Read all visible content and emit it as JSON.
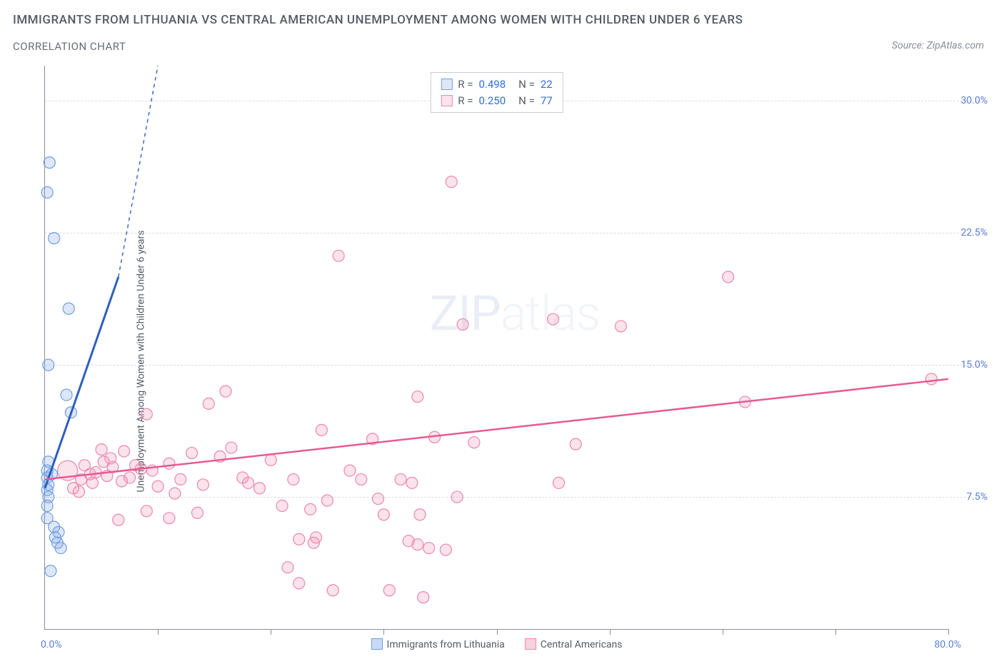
{
  "title_main": "IMMIGRANTS FROM LITHUANIA VS CENTRAL AMERICAN UNEMPLOYMENT AMONG WOMEN WITH CHILDREN UNDER 6 YEARS",
  "title_sub": "CORRELATION CHART",
  "source": "Source: ZipAtlas.com",
  "ylabel": "Unemployment Among Women with Children Under 6 years",
  "watermark_a": "ZIP",
  "watermark_b": "atlas",
  "chart": {
    "type": "scatter",
    "xlim": [
      0,
      80
    ],
    "ylim": [
      0,
      32
    ],
    "ytick_step": 7.5,
    "xtick_step": 10,
    "y_labels": [
      {
        "v": 7.5,
        "t": "7.5%"
      },
      {
        "v": 15.0,
        "t": "15.0%"
      },
      {
        "v": 22.5,
        "t": "22.5%"
      },
      {
        "v": 30.0,
        "t": "30.0%"
      }
    ],
    "x_min_label": "0.0%",
    "x_max_label": "80.0%",
    "grid_color": "#d9dbe0",
    "axis_color": "#8b8f9a",
    "background_color": "#ffffff",
    "marker_radius": 8,
    "series": [
      {
        "name": "Immigrants from Lithuania",
        "color_fill": "rgba(120,160,230,0.25)",
        "color_stroke": "#6f9fe0",
        "line_color": "#2e5fbf",
        "line_width": 3,
        "R": "0.498",
        "N": "22",
        "trend": {
          "x1": 0,
          "y1": 8.0,
          "x2": 6.5,
          "y2": 20.0,
          "dash_to_x": 10,
          "dash_to_y": 32
        },
        "points": [
          {
            "x": 0.4,
            "y": 26.5
          },
          {
            "x": 0.2,
            "y": 24.8
          },
          {
            "x": 0.8,
            "y": 22.2
          },
          {
            "x": 2.1,
            "y": 18.2
          },
          {
            "x": 0.3,
            "y": 15.0
          },
          {
            "x": 1.9,
            "y": 13.3
          },
          {
            "x": 2.3,
            "y": 12.3
          },
          {
            "x": 0.3,
            "y": 9.5
          },
          {
            "x": 0.2,
            "y": 9.0
          },
          {
            "x": 0.2,
            "y": 8.6
          },
          {
            "x": 0.3,
            "y": 8.2
          },
          {
            "x": 0.2,
            "y": 7.9
          },
          {
            "x": 0.3,
            "y": 7.5
          },
          {
            "x": 0.2,
            "y": 7.0
          },
          {
            "x": 0.2,
            "y": 6.3
          },
          {
            "x": 0.8,
            "y": 5.8
          },
          {
            "x": 1.2,
            "y": 5.5
          },
          {
            "x": 0.9,
            "y": 5.2
          },
          {
            "x": 1.1,
            "y": 4.9
          },
          {
            "x": 1.4,
            "y": 4.6
          },
          {
            "x": 0.5,
            "y": 3.3
          },
          {
            "x": 0.6,
            "y": 8.8
          }
        ]
      },
      {
        "name": "Central Americans",
        "color_fill": "rgba(240,140,175,0.25)",
        "color_stroke": "#ea87af",
        "line_color": "#e75a93",
        "line_width": 2.5,
        "R": "0.250",
        "N": "77",
        "trend": {
          "x1": 0,
          "y1": 8.5,
          "x2": 80,
          "y2": 14.2
        },
        "points": [
          {
            "x": 36,
            "y": 25.4
          },
          {
            "x": 26,
            "y": 21.2
          },
          {
            "x": 60.5,
            "y": 20.0
          },
          {
            "x": 45,
            "y": 17.6
          },
          {
            "x": 37,
            "y": 17.3
          },
          {
            "x": 51,
            "y": 17.2
          },
          {
            "x": 78.5,
            "y": 14.2
          },
          {
            "x": 16,
            "y": 13.5
          },
          {
            "x": 33,
            "y": 13.2
          },
          {
            "x": 14.5,
            "y": 12.8
          },
          {
            "x": 62,
            "y": 12.9
          },
          {
            "x": 9,
            "y": 12.2
          },
          {
            "x": 24.5,
            "y": 11.3
          },
          {
            "x": 29,
            "y": 10.8
          },
          {
            "x": 34.5,
            "y": 10.9
          },
          {
            "x": 38,
            "y": 10.6
          },
          {
            "x": 47,
            "y": 10.5
          },
          {
            "x": 5,
            "y": 10.2
          },
          {
            "x": 7,
            "y": 10.1
          },
          {
            "x": 13,
            "y": 10.0
          },
          {
            "x": 15.5,
            "y": 9.8
          },
          {
            "x": 20,
            "y": 9.6
          },
          {
            "x": 11,
            "y": 9.4
          },
          {
            "x": 3.5,
            "y": 9.3
          },
          {
            "x": 6,
            "y": 9.2
          },
          {
            "x": 8.5,
            "y": 9.1
          },
          {
            "x": 9.5,
            "y": 9.0
          },
          {
            "x": 2,
            "y": 9.0,
            "r": 14
          },
          {
            "x": 4,
            "y": 8.8
          },
          {
            "x": 5.5,
            "y": 8.7
          },
          {
            "x": 7.5,
            "y": 8.6
          },
          {
            "x": 12,
            "y": 8.5
          },
          {
            "x": 22,
            "y": 8.5
          },
          {
            "x": 31.5,
            "y": 8.5
          },
          {
            "x": 32.5,
            "y": 8.3
          },
          {
            "x": 28,
            "y": 8.5
          },
          {
            "x": 18,
            "y": 8.3
          },
          {
            "x": 14,
            "y": 8.2
          },
          {
            "x": 10,
            "y": 8.1
          },
          {
            "x": 2.5,
            "y": 8.0
          },
          {
            "x": 3,
            "y": 7.8
          },
          {
            "x": 11.5,
            "y": 7.7
          },
          {
            "x": 36.5,
            "y": 7.5
          },
          {
            "x": 29.5,
            "y": 7.4
          },
          {
            "x": 25,
            "y": 7.3
          },
          {
            "x": 21,
            "y": 7.0
          },
          {
            "x": 23.5,
            "y": 6.8
          },
          {
            "x": 9,
            "y": 6.7
          },
          {
            "x": 13.5,
            "y": 6.6
          },
          {
            "x": 30,
            "y": 6.5
          },
          {
            "x": 33.2,
            "y": 6.5
          },
          {
            "x": 11,
            "y": 6.3
          },
          {
            "x": 6.5,
            "y": 6.2
          },
          {
            "x": 22.5,
            "y": 5.1
          },
          {
            "x": 24,
            "y": 5.2
          },
          {
            "x": 23.8,
            "y": 4.9
          },
          {
            "x": 32.2,
            "y": 5.0
          },
          {
            "x": 33,
            "y": 4.8
          },
          {
            "x": 34,
            "y": 4.6
          },
          {
            "x": 35.5,
            "y": 4.5
          },
          {
            "x": 21.5,
            "y": 3.5
          },
          {
            "x": 22.5,
            "y": 2.6
          },
          {
            "x": 25.5,
            "y": 2.2
          },
          {
            "x": 30.5,
            "y": 2.2
          },
          {
            "x": 33.5,
            "y": 1.8
          },
          {
            "x": 4.5,
            "y": 8.9
          },
          {
            "x": 5.2,
            "y": 9.5
          },
          {
            "x": 6.8,
            "y": 8.4
          },
          {
            "x": 8,
            "y": 9.3
          },
          {
            "x": 3.2,
            "y": 8.5
          },
          {
            "x": 4.2,
            "y": 8.3
          },
          {
            "x": 19,
            "y": 8.0
          },
          {
            "x": 16.5,
            "y": 10.3
          },
          {
            "x": 17.5,
            "y": 8.6
          },
          {
            "x": 27,
            "y": 9.0
          },
          {
            "x": 45.5,
            "y": 8.3
          },
          {
            "x": 5.8,
            "y": 9.7
          }
        ]
      }
    ]
  },
  "legend_bottom": [
    {
      "label": "Immigrants from Lithuania",
      "fill": "rgba(120,160,230,0.4)",
      "stroke": "#6f9fe0"
    },
    {
      "label": "Central Americans",
      "fill": "rgba(240,140,175,0.4)",
      "stroke": "#ea87af"
    }
  ]
}
